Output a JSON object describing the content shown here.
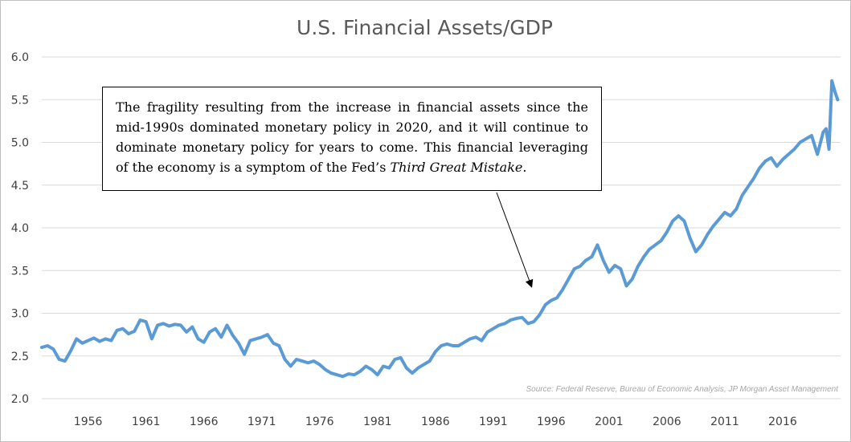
{
  "title": "U.S. Financial Assets/GDP",
  "annotation": {
    "text_main": "The fragility resulting from the increase in financial assets since the mid-1990s dominated monetary policy in 2020, and it will continue to dominate monetary policy for years to come.  This financial leveraging of the economy is a symptom of the Fed’s ",
    "text_italic": "Third Great Mistake",
    "text_end": "."
  },
  "source": "Source: Federal Reserve, Bureau of Economic Analysis, JP Morgan Asset Management",
  "colors": {
    "line": "#5b9bd5",
    "grid": "#d9d9d9",
    "text": "#404040"
  },
  "chart_data": {
    "type": "line",
    "title": "U.S. Financial Assets/GDP",
    "xlabel": "",
    "ylabel": "",
    "ylim": [
      2.0,
      6.0
    ],
    "xlim": [
      1952,
      2021
    ],
    "y_ticks": [
      "2.0",
      "2.5",
      "3.0",
      "3.5",
      "4.0",
      "4.5",
      "5.0",
      "5.5",
      "6.0"
    ],
    "x_ticks": [
      "1956",
      "1961",
      "1966",
      "1971",
      "1976",
      "1981",
      "1986",
      "1991",
      "1996",
      "2001",
      "2006",
      "2011",
      "2016"
    ],
    "grid": true,
    "legend": "none",
    "series": [
      {
        "x": [
          1952.0,
          1952.5,
          1953.0,
          1953.5,
          1954.0,
          1954.5,
          1955.0,
          1955.5,
          1956.0,
          1956.5,
          1957.0,
          1957.5,
          1958.0,
          1958.5,
          1959.0,
          1959.5,
          1960.0,
          1960.5,
          1961.0,
          1961.5,
          1962.0,
          1962.5,
          1963.0,
          1963.5,
          1964.0,
          1964.5,
          1965.0,
          1965.5,
          1966.0,
          1966.5,
          1967.0,
          1967.5,
          1968.0,
          1968.5,
          1969.0,
          1969.5,
          1970.0,
          1970.5,
          1971.0,
          1971.5,
          1972.0,
          1972.5,
          1973.0,
          1973.5,
          1974.0,
          1974.5,
          1975.0,
          1975.5,
          1976.0,
          1976.5,
          1977.0,
          1977.5,
          1978.0,
          1978.5,
          1979.0,
          1979.5,
          1980.0,
          1980.5,
          1981.0,
          1981.5,
          1982.0,
          1982.5,
          1983.0,
          1983.5,
          1984.0,
          1984.5,
          1985.0,
          1985.5,
          1986.0,
          1986.5,
          1987.0,
          1987.5,
          1988.0,
          1988.5,
          1989.0,
          1989.5,
          1990.0,
          1990.5,
          1991.0,
          1991.5,
          1992.0,
          1992.5,
          1993.0,
          1993.5,
          1994.0,
          1994.5,
          1995.0,
          1995.5,
          1996.0,
          1996.5,
          1997.0,
          1997.5,
          1998.0,
          1998.5,
          1999.0,
          1999.5,
          2000.0,
          2000.5,
          2001.0,
          2001.5,
          2002.0,
          2002.5,
          2003.0,
          2003.5,
          2004.0,
          2004.5,
          2005.0,
          2005.5,
          2006.0,
          2006.5,
          2007.0,
          2007.5,
          2008.0,
          2008.5,
          2009.0,
          2009.5,
          2010.0,
          2010.5,
          2011.0,
          2011.5,
          2012.0,
          2012.5,
          2013.0,
          2013.5,
          2014.0,
          2014.5,
          2015.0,
          2015.5,
          2016.0,
          2016.5,
          2017.0,
          2017.5,
          2018.0,
          2018.5,
          2019.0,
          2019.5,
          2019.75,
          2020.0,
          2020.25,
          2020.5,
          2020.75
        ],
        "values": [
          2.6,
          2.62,
          2.58,
          2.46,
          2.44,
          2.56,
          2.7,
          2.65,
          2.68,
          2.71,
          2.67,
          2.7,
          2.68,
          2.8,
          2.82,
          2.76,
          2.79,
          2.92,
          2.9,
          2.7,
          2.86,
          2.88,
          2.85,
          2.87,
          2.86,
          2.78,
          2.84,
          2.7,
          2.66,
          2.78,
          2.82,
          2.72,
          2.86,
          2.74,
          2.65,
          2.52,
          2.68,
          2.7,
          2.72,
          2.75,
          2.65,
          2.62,
          2.46,
          2.38,
          2.46,
          2.44,
          2.42,
          2.44,
          2.4,
          2.34,
          2.3,
          2.28,
          2.26,
          2.29,
          2.28,
          2.32,
          2.38,
          2.34,
          2.28,
          2.38,
          2.36,
          2.46,
          2.48,
          2.36,
          2.3,
          2.36,
          2.4,
          2.44,
          2.55,
          2.62,
          2.64,
          2.62,
          2.62,
          2.66,
          2.7,
          2.72,
          2.68,
          2.78,
          2.82,
          2.86,
          2.88,
          2.92,
          2.94,
          2.95,
          2.88,
          2.9,
          2.98,
          3.1,
          3.15,
          3.18,
          3.28,
          3.4,
          3.52,
          3.55,
          3.62,
          3.66,
          3.8,
          3.62,
          3.48,
          3.56,
          3.52,
          3.32,
          3.4,
          3.55,
          3.66,
          3.75,
          3.8,
          3.85,
          3.95,
          4.08,
          4.14,
          4.08,
          3.88,
          3.72,
          3.8,
          3.92,
          4.02,
          4.1,
          4.18,
          4.14,
          4.22,
          4.38,
          4.48,
          4.58,
          4.7,
          4.78,
          4.82,
          4.72,
          4.8,
          4.86,
          4.92,
          5.0,
          5.04,
          5.08,
          4.86,
          5.12,
          5.16,
          4.92,
          5.72,
          5.6,
          5.5
        ],
        "note": ""
      }
    ]
  }
}
